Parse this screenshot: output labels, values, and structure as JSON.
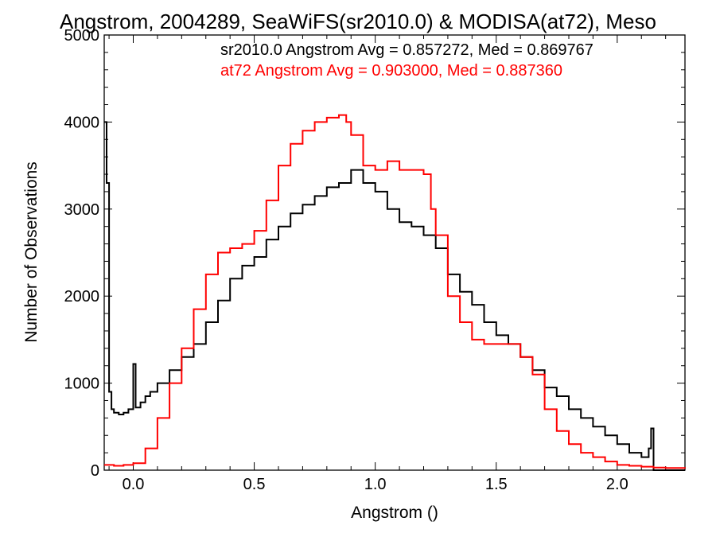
{
  "chart_data": {
    "type": "line",
    "title": "Angstrom, 2004289, SeaWiFS(sr2010.0) & MODISA(at72), Meso",
    "xlabel": "Angstrom ()",
    "ylabel": "Number of Observations",
    "xlim": [
      -0.12,
      2.28
    ],
    "ylim": [
      0,
      5000
    ],
    "x_ticks": [
      0.0,
      0.5,
      1.0,
      1.5,
      2.0
    ],
    "x_tick_labels": [
      "0.0",
      "0.5",
      "1.0",
      "1.5",
      "2.0"
    ],
    "y_ticks": [
      0,
      1000,
      2000,
      3000,
      4000,
      5000
    ],
    "y_tick_labels": [
      "0",
      "1000",
      "2000",
      "3000",
      "4000",
      "5000"
    ],
    "grid": false,
    "legend": [
      {
        "text": "sr2010.0 Angstrom Avg = 0.857272, Med = 0.869767",
        "color": "#000000"
      },
      {
        "text": "at72 Angstrom Avg = 0.903000, Med = 0.887360",
        "color": "#ff0000"
      }
    ],
    "series": [
      {
        "color": "#000000",
        "x": [
          -0.12,
          -0.11,
          -0.1,
          -0.09,
          -0.08,
          -0.06,
          -0.04,
          -0.02,
          0.0,
          0.01,
          0.03,
          0.05,
          0.07,
          0.1,
          0.15,
          0.2,
          0.25,
          0.3,
          0.35,
          0.4,
          0.45,
          0.5,
          0.55,
          0.6,
          0.65,
          0.7,
          0.75,
          0.8,
          0.85,
          0.9,
          0.95,
          1.0,
          1.05,
          1.1,
          1.15,
          1.2,
          1.25,
          1.3,
          1.35,
          1.4,
          1.45,
          1.5,
          1.55,
          1.6,
          1.65,
          1.7,
          1.75,
          1.8,
          1.85,
          1.9,
          1.95,
          2.0,
          2.05,
          2.1,
          2.13,
          2.14,
          2.15,
          2.16,
          2.2,
          2.28
        ],
        "y": [
          4000,
          3300,
          900,
          700,
          660,
          640,
          660,
          700,
          1220,
          720,
          780,
          850,
          900,
          1000,
          1150,
          1300,
          1450,
          1700,
          1950,
          2200,
          2350,
          2450,
          2650,
          2800,
          2950,
          3050,
          3150,
          3250,
          3300,
          3450,
          3300,
          3200,
          3000,
          2850,
          2800,
          2700,
          2550,
          2250,
          2050,
          1900,
          1700,
          1550,
          1450,
          1300,
          1150,
          950,
          850,
          700,
          600,
          500,
          400,
          300,
          200,
          150,
          250,
          480,
          0,
          0,
          0,
          0
        ]
      },
      {
        "color": "#ff0000",
        "x": [
          -0.12,
          -0.08,
          -0.04,
          0.0,
          0.05,
          0.1,
          0.15,
          0.2,
          0.25,
          0.3,
          0.35,
          0.4,
          0.45,
          0.5,
          0.55,
          0.6,
          0.65,
          0.7,
          0.75,
          0.8,
          0.85,
          0.88,
          0.9,
          0.95,
          1.0,
          1.05,
          1.1,
          1.15,
          1.2,
          1.23,
          1.25,
          1.3,
          1.35,
          1.4,
          1.45,
          1.5,
          1.55,
          1.6,
          1.65,
          1.7,
          1.75,
          1.8,
          1.85,
          1.9,
          1.95,
          2.0,
          2.05,
          2.1,
          2.15,
          2.2,
          2.28
        ],
        "y": [
          60,
          50,
          60,
          80,
          250,
          600,
          1000,
          1400,
          1850,
          2250,
          2500,
          2550,
          2600,
          2750,
          3100,
          3500,
          3750,
          3900,
          4000,
          4050,
          4080,
          4000,
          3850,
          3500,
          3450,
          3550,
          3450,
          3450,
          3400,
          3000,
          2700,
          2000,
          1700,
          1500,
          1450,
          1450,
          1450,
          1300,
          1100,
          700,
          450,
          300,
          200,
          150,
          100,
          60,
          50,
          40,
          30,
          25,
          20
        ]
      }
    ]
  }
}
